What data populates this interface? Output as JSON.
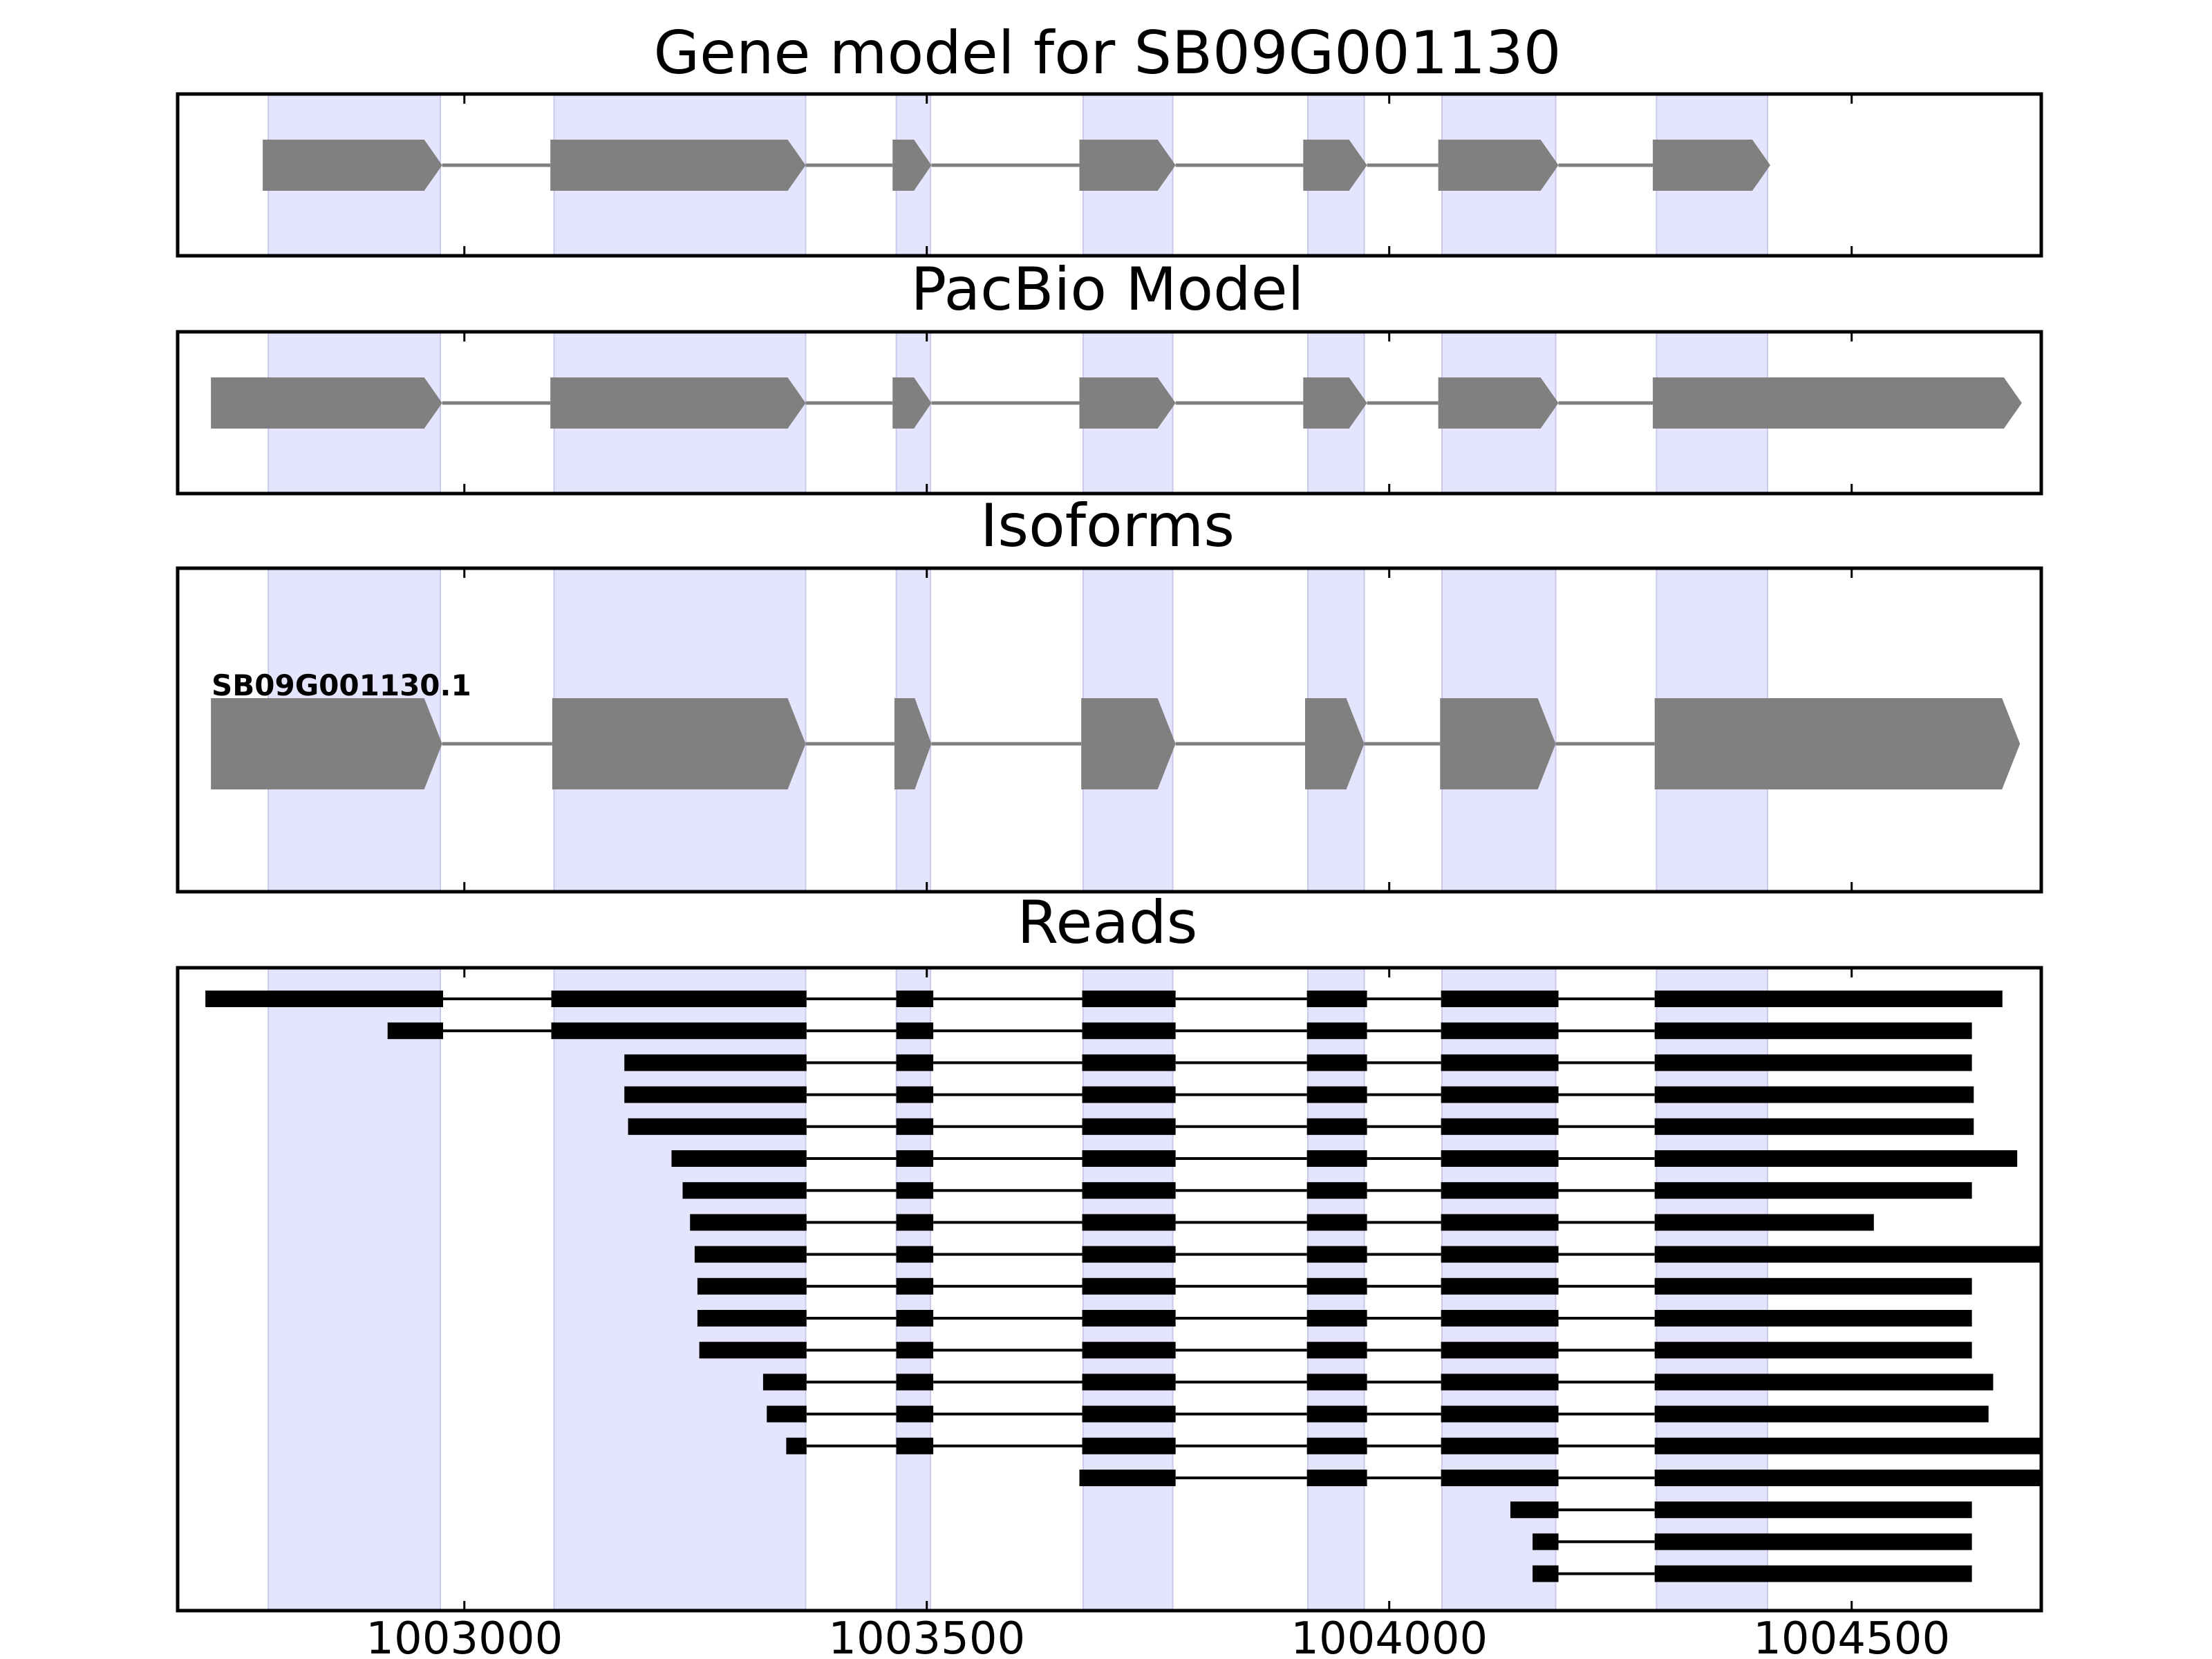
{
  "chart_data": {
    "type": "gene_model_tracks",
    "x_range": [
      1002690,
      1004705
    ],
    "x_ticks": [
      {
        "value": 1003000,
        "label": "1003000"
      },
      {
        "value": 1003500,
        "label": "1003500"
      },
      {
        "value": 1004000,
        "label": "1004000"
      },
      {
        "value": 1004500,
        "label": "1004500"
      }
    ],
    "highlight_color": "#e4e4fc",
    "feature_color": "#808080",
    "read_color": "#000000",
    "highlights": [
      [
        1002788,
        1002974
      ],
      [
        1003097,
        1003369
      ],
      [
        1003467,
        1003504
      ],
      [
        1003669,
        1003766
      ],
      [
        1003912,
        1003973
      ],
      [
        1004057,
        1004180
      ],
      [
        1004289,
        1004409
      ]
    ],
    "panels": [
      {
        "title": "Gene model for SB09G001130",
        "tracks": [
          {
            "exons": [
              [
                1002782,
                1002976
              ],
              [
                1003093,
                1003369
              ],
              [
                1003463,
                1003505
              ],
              [
                1003665,
                1003769
              ],
              [
                1003907,
                1003976
              ],
              [
                1004053,
                1004183
              ],
              [
                1004285,
                1004412
              ]
            ]
          }
        ]
      },
      {
        "title": "PacBio Model",
        "tracks": [
          {
            "exons": [
              [
                1002726,
                1002976
              ],
              [
                1003093,
                1003369
              ],
              [
                1003463,
                1003505
              ],
              [
                1003665,
                1003769
              ],
              [
                1003907,
                1003976
              ],
              [
                1004053,
                1004183
              ],
              [
                1004285,
                1004684
              ]
            ]
          }
        ]
      },
      {
        "title": "Isoforms",
        "tracks": [
          {
            "label": "SB09G001130.1",
            "exons": [
              [
                1002726,
                1002976
              ],
              [
                1003095,
                1003369
              ],
              [
                1003465,
                1003505
              ],
              [
                1003667,
                1003769
              ],
              [
                1003909,
                1003973
              ],
              [
                1004055,
                1004180
              ],
              [
                1004287,
                1004682
              ]
            ]
          }
        ]
      },
      {
        "title": "Reads",
        "reads": [
          {
            "exons": [
              [
                1002720,
                1002977
              ],
              [
                1003094,
                1003370
              ],
              [
                1003467,
                1003507
              ],
              [
                1003668,
                1003769
              ],
              [
                1003911,
                1003976
              ],
              [
                1004056,
                1004183
              ],
              [
                1004287,
                1004663
              ]
            ]
          },
          {
            "exons": [
              [
                1002917,
                1002977
              ],
              [
                1003094,
                1003370
              ],
              [
                1003467,
                1003507
              ],
              [
                1003668,
                1003769
              ],
              [
                1003911,
                1003976
              ],
              [
                1004056,
                1004183
              ],
              [
                1004287,
                1004630
              ]
            ]
          },
          {
            "exons": [
              [
                1003173,
                1003370
              ],
              [
                1003467,
                1003507
              ],
              [
                1003668,
                1003769
              ],
              [
                1003911,
                1003976
              ],
              [
                1004056,
                1004183
              ],
              [
                1004287,
                1004630
              ]
            ]
          },
          {
            "exons": [
              [
                1003173,
                1003370
              ],
              [
                1003467,
                1003507
              ],
              [
                1003668,
                1003769
              ],
              [
                1003911,
                1003976
              ],
              [
                1004056,
                1004183
              ],
              [
                1004287,
                1004632
              ]
            ]
          },
          {
            "exons": [
              [
                1003177,
                1003370
              ],
              [
                1003467,
                1003507
              ],
              [
                1003668,
                1003769
              ],
              [
                1003911,
                1003976
              ],
              [
                1004056,
                1004183
              ],
              [
                1004287,
                1004632
              ]
            ]
          },
          {
            "exons": [
              [
                1003224,
                1003370
              ],
              [
                1003467,
                1003507
              ],
              [
                1003668,
                1003769
              ],
              [
                1003911,
                1003976
              ],
              [
                1004056,
                1004183
              ],
              [
                1004287,
                1004679
              ]
            ]
          },
          {
            "exons": [
              [
                1003236,
                1003370
              ],
              [
                1003467,
                1003507
              ],
              [
                1003668,
                1003769
              ],
              [
                1003911,
                1003976
              ],
              [
                1004056,
                1004183
              ],
              [
                1004287,
                1004630
              ]
            ]
          },
          {
            "exons": [
              [
                1003244,
                1003370
              ],
              [
                1003467,
                1003507
              ],
              [
                1003668,
                1003769
              ],
              [
                1003911,
                1003976
              ],
              [
                1004056,
                1004183
              ],
              [
                1004287,
                1004524
              ]
            ]
          },
          {
            "exons": [
              [
                1003249,
                1003370
              ],
              [
                1003467,
                1003507
              ],
              [
                1003668,
                1003769
              ],
              [
                1003911,
                1003976
              ],
              [
                1004056,
                1004183
              ],
              [
                1004287,
                1004705
              ]
            ]
          },
          {
            "exons": [
              [
                1003252,
                1003370
              ],
              [
                1003467,
                1003507
              ],
              [
                1003668,
                1003769
              ],
              [
                1003911,
                1003976
              ],
              [
                1004056,
                1004183
              ],
              [
                1004287,
                1004630
              ]
            ]
          },
          {
            "exons": [
              [
                1003252,
                1003370
              ],
              [
                1003467,
                1003507
              ],
              [
                1003668,
                1003769
              ],
              [
                1003911,
                1003976
              ],
              [
                1004056,
                1004183
              ],
              [
                1004287,
                1004630
              ]
            ]
          },
          {
            "exons": [
              [
                1003254,
                1003370
              ],
              [
                1003467,
                1003507
              ],
              [
                1003668,
                1003769
              ],
              [
                1003911,
                1003976
              ],
              [
                1004056,
                1004183
              ],
              [
                1004287,
                1004630
              ]
            ]
          },
          {
            "exons": [
              [
                1003323,
                1003370
              ],
              [
                1003467,
                1003507
              ],
              [
                1003668,
                1003769
              ],
              [
                1003911,
                1003976
              ],
              [
                1004056,
                1004183
              ],
              [
                1004287,
                1004653
              ]
            ]
          },
          {
            "exons": [
              [
                1003327,
                1003370
              ],
              [
                1003467,
                1003507
              ],
              [
                1003668,
                1003769
              ],
              [
                1003911,
                1003976
              ],
              [
                1004056,
                1004183
              ],
              [
                1004287,
                1004648
              ]
            ]
          },
          {
            "exons": [
              [
                1003348,
                1003370
              ],
              [
                1003467,
                1003507
              ],
              [
                1003668,
                1003769
              ],
              [
                1003911,
                1003976
              ],
              [
                1004056,
                1004183
              ],
              [
                1004287,
                1004705
              ]
            ]
          },
          {
            "exons": [
              [
                1003665,
                1003769
              ],
              [
                1003911,
                1003976
              ],
              [
                1004056,
                1004183
              ],
              [
                1004287,
                1004705
              ]
            ]
          },
          {
            "exons": [
              [
                1004131,
                1004183
              ],
              [
                1004287,
                1004630
              ]
            ]
          },
          {
            "exons": [
              [
                1004155,
                1004183
              ],
              [
                1004287,
                1004630
              ]
            ]
          },
          {
            "exons": [
              [
                1004155,
                1004183
              ],
              [
                1004287,
                1004630
              ]
            ]
          }
        ]
      }
    ]
  }
}
